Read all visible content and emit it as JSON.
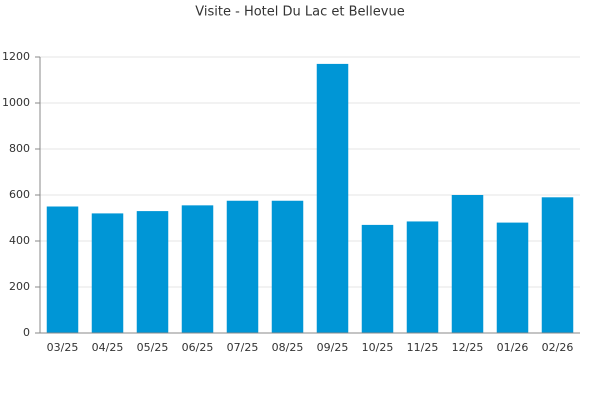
{
  "chart_data": {
    "type": "bar",
    "title": "Visite - Hotel Du Lac et Bellevue",
    "categories": [
      "03/25",
      "04/25",
      "05/25",
      "06/25",
      "07/25",
      "08/25",
      "09/25",
      "10/25",
      "11/25",
      "12/25",
      "01/26",
      "02/26"
    ],
    "values": [
      550,
      520,
      530,
      555,
      575,
      575,
      1170,
      470,
      485,
      600,
      480,
      590
    ],
    "color": "#0096d6",
    "ylim": [
      0,
      1200
    ],
    "yticks": [
      0,
      200,
      400,
      600,
      800,
      1000,
      1200
    ],
    "grid": true
  }
}
